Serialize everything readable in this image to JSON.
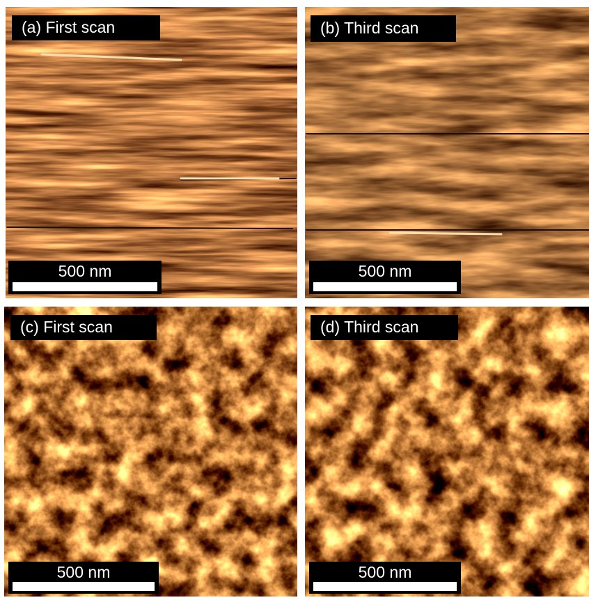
{
  "panels": [
    {
      "label": "(a)  First scan",
      "scale_bar": "500 nm"
    },
    {
      "label": "(b) Third scan",
      "scale_bar": "500 nm"
    },
    {
      "label": "(c) First scan",
      "scale_bar": "500 nm"
    },
    {
      "label": "(d) Third scan",
      "scale_bar": "500 nm"
    }
  ]
}
